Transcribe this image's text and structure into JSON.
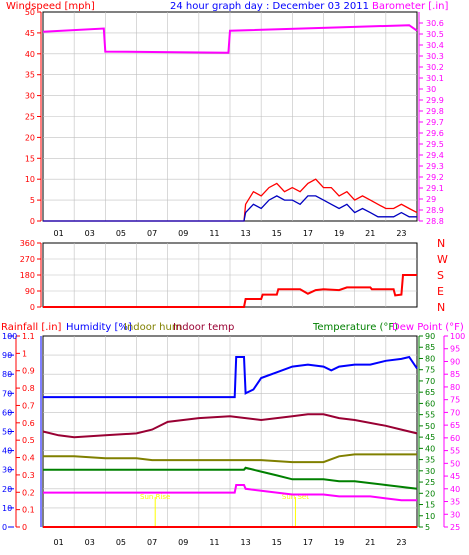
{
  "colors": {
    "wind_axis": "#ff0000",
    "gust_line": "#ff0000",
    "avg_wind_line": "#0000c0",
    "barometer": "#ff00ff",
    "direction": "#ff0000",
    "rain_axis": "#ff0000",
    "humidity": "#0000ff",
    "indoor_hum": "#808000",
    "indoor_temp": "#990033",
    "temperature": "#008000",
    "dew_point": "#ff00ff",
    "title": "#0000ff",
    "grid": "#c0c0c0",
    "frame": "#000000",
    "background": "#ffffff"
  },
  "chart_data": [
    {
      "type": "line",
      "panel": "wind-barometer",
      "title": "24 hour graph day : December 03 2011",
      "ylabel_left": "Windspeed [mph]",
      "ylabel_right": "Barometer [.in]",
      "x_tick_labels": [
        "01",
        "03",
        "05",
        "07",
        "09",
        "11",
        "13",
        "15",
        "17",
        "19",
        "21",
        "23"
      ],
      "x_range_hours": [
        0,
        24
      ],
      "left_axis": {
        "range": [
          0,
          50
        ],
        "ticks": [
          "0",
          "5",
          "10",
          "15",
          "20",
          "25",
          "30",
          "35",
          "40",
          "45",
          "50"
        ]
      },
      "right_axis": {
        "range": [
          28.8,
          30.7
        ],
        "ticks": [
          "28.8",
          "28.9",
          "29",
          "29.1",
          "29.2",
          "29.3",
          "29.4",
          "29.5",
          "29.6",
          "29.7",
          "29.8",
          "29.9",
          "30",
          "30.1",
          "30.2",
          "30.3",
          "30.4",
          "30.5",
          "30.6"
        ]
      },
      "series": [
        {
          "axis": "right",
          "color": "#ff00ff",
          "x": [
            0,
            3.9,
            4.0,
            11.9,
            12.0,
            19,
            23.5,
            24
          ],
          "y": [
            30.52,
            30.55,
            30.34,
            30.33,
            30.53,
            30.56,
            30.58,
            30.53
          ]
        },
        {
          "axis": "left",
          "color": "#ff0000",
          "x": [
            0,
            12.9,
            13.0,
            13.5,
            14,
            14.5,
            15,
            15.5,
            16,
            16.5,
            17,
            17.5,
            18,
            18.5,
            19,
            19.5,
            20,
            20.5,
            21,
            21.5,
            22,
            22.5,
            23,
            23.5,
            24
          ],
          "y": [
            0,
            0,
            4,
            7,
            6,
            8,
            9,
            7,
            8,
            7,
            9,
            10,
            8,
            8,
            6,
            7,
            5,
            6,
            5,
            4,
            3,
            3,
            4,
            3,
            2
          ]
        },
        {
          "axis": "left",
          "color": "#0000c0",
          "x": [
            0,
            12.9,
            13.0,
            13.5,
            14,
            14.5,
            15,
            15.5,
            16,
            16.5,
            17,
            17.5,
            18,
            18.5,
            19,
            19.5,
            20,
            20.5,
            21,
            21.5,
            22,
            22.5,
            23,
            23.5,
            24
          ],
          "y": [
            0,
            0,
            2,
            4,
            3,
            5,
            6,
            5,
            5,
            4,
            6,
            6,
            5,
            4,
            3,
            4,
            2,
            3,
            2,
            1,
            1,
            1,
            2,
            1,
            1
          ]
        }
      ]
    },
    {
      "type": "line",
      "panel": "wind-direction",
      "y_tick_labels": [
        "0",
        "90",
        "180",
        "270",
        "360"
      ],
      "compass_labels": [
        "N",
        "W",
        "S",
        "E",
        "N"
      ],
      "y_range": [
        0,
        360
      ],
      "series": [
        {
          "color": "#ff0000",
          "x": [
            0,
            12.9,
            13.0,
            14,
            14.1,
            15,
            15.1,
            16.5,
            17,
            17.5,
            18,
            19,
            19.5,
            21,
            21.1,
            22.5,
            22.6,
            23,
            23.1,
            24
          ],
          "y": [
            0,
            0,
            45,
            45,
            70,
            70,
            100,
            100,
            75,
            95,
            100,
            95,
            110,
            110,
            100,
            100,
            65,
            70,
            180,
            180
          ]
        }
      ]
    },
    {
      "type": "line",
      "panel": "temperature-humidity",
      "labels": [
        "Rainfall [.in]",
        "Humidity [%]",
        "Indoor hum",
        "Indoor temp",
        "Temperature (°F)",
        "Dew Point (°F)"
      ],
      "rain_axis": {
        "range": [
          0,
          1.1
        ],
        "ticks": [
          "0",
          "0.1",
          "0.2",
          "0.3",
          "0.4",
          "0.5",
          "0.6",
          "0.7",
          "0.8",
          "0.9",
          "1",
          "1.1"
        ]
      },
      "humidity_axis": {
        "range": [
          0,
          100
        ],
        "ticks": [
          "0",
          "10",
          "20",
          "30",
          "40",
          "50",
          "60",
          "70",
          "80",
          "90",
          "100"
        ]
      },
      "temp_axis": {
        "range": [
          5,
          90
        ],
        "ticks": [
          "5",
          "10",
          "15",
          "20",
          "25",
          "30",
          "35",
          "40",
          "45",
          "50",
          "55",
          "60",
          "65",
          "70",
          "75",
          "80",
          "85",
          "90"
        ]
      },
      "dew_axis": {
        "range": [
          25,
          100
        ],
        "ticks": [
          "25",
          "30",
          "35",
          "40",
          "45",
          "50",
          "55",
          "60",
          "65",
          "70",
          "75",
          "80",
          "85",
          "90",
          "95",
          "100"
        ]
      },
      "markers": [
        "Sun Rise",
        "Sun Set"
      ],
      "series": [
        {
          "name": "Humidity [%]",
          "axis": "humidity",
          "color": "#0000ff",
          "x": [
            0,
            12.3,
            12.4,
            12.9,
            13.0,
            13.5,
            14,
            15,
            16,
            17,
            18,
            18.5,
            19,
            20,
            21,
            22,
            23,
            23.5,
            24
          ],
          "y": [
            68,
            68,
            89,
            89,
            70,
            72,
            78,
            81,
            84,
            85,
            84,
            82,
            84,
            85,
            85,
            87,
            88,
            89,
            83
          ]
        },
        {
          "name": "Indoor temp",
          "axis": "humidity",
          "color": "#990033",
          "x": [
            0,
            1,
            2,
            4,
            6,
            7,
            8,
            10,
            12,
            14,
            16,
            17,
            18,
            19,
            20,
            22,
            23,
            24
          ],
          "y": [
            50,
            48,
            47,
            48,
            49,
            51,
            55,
            57,
            58,
            56,
            58,
            59,
            59,
            57,
            56,
            53,
            51,
            49
          ]
        },
        {
          "name": "Indoor hum",
          "axis": "humidity",
          "color": "#808000",
          "x": [
            0,
            2,
            4,
            6,
            7,
            8,
            10,
            12,
            14,
            16,
            17,
            18,
            19,
            20,
            22,
            24
          ],
          "y": [
            37,
            37,
            36,
            36,
            35,
            35,
            35,
            35,
            35,
            34,
            34,
            34,
            37,
            38,
            38,
            38
          ]
        },
        {
          "name": "Temperature",
          "axis": "humidity",
          "color": "#008000",
          "x": [
            0,
            12.9,
            13.0,
            14,
            15,
            16,
            17,
            18,
            19,
            20,
            21,
            22,
            23,
            24
          ],
          "y": [
            30,
            30,
            31,
            29,
            27,
            25,
            25,
            25,
            24,
            24,
            23,
            22,
            21,
            20
          ]
        },
        {
          "name": "Dew Point",
          "axis": "humidity",
          "color": "#ff00ff",
          "x": [
            0,
            12.3,
            12.4,
            12.9,
            13.0,
            14,
            15,
            16,
            17,
            18,
            19,
            20,
            21,
            22,
            23,
            24
          ],
          "y": [
            18,
            18,
            22,
            22,
            20,
            19,
            18,
            17,
            17,
            17,
            16,
            16,
            16,
            15,
            14,
            14
          ]
        },
        {
          "name": "Rainfall [.in]",
          "axis": "rain",
          "color": "#ff0000",
          "x": [
            0,
            24
          ],
          "y": [
            0,
            0
          ]
        }
      ]
    }
  ]
}
